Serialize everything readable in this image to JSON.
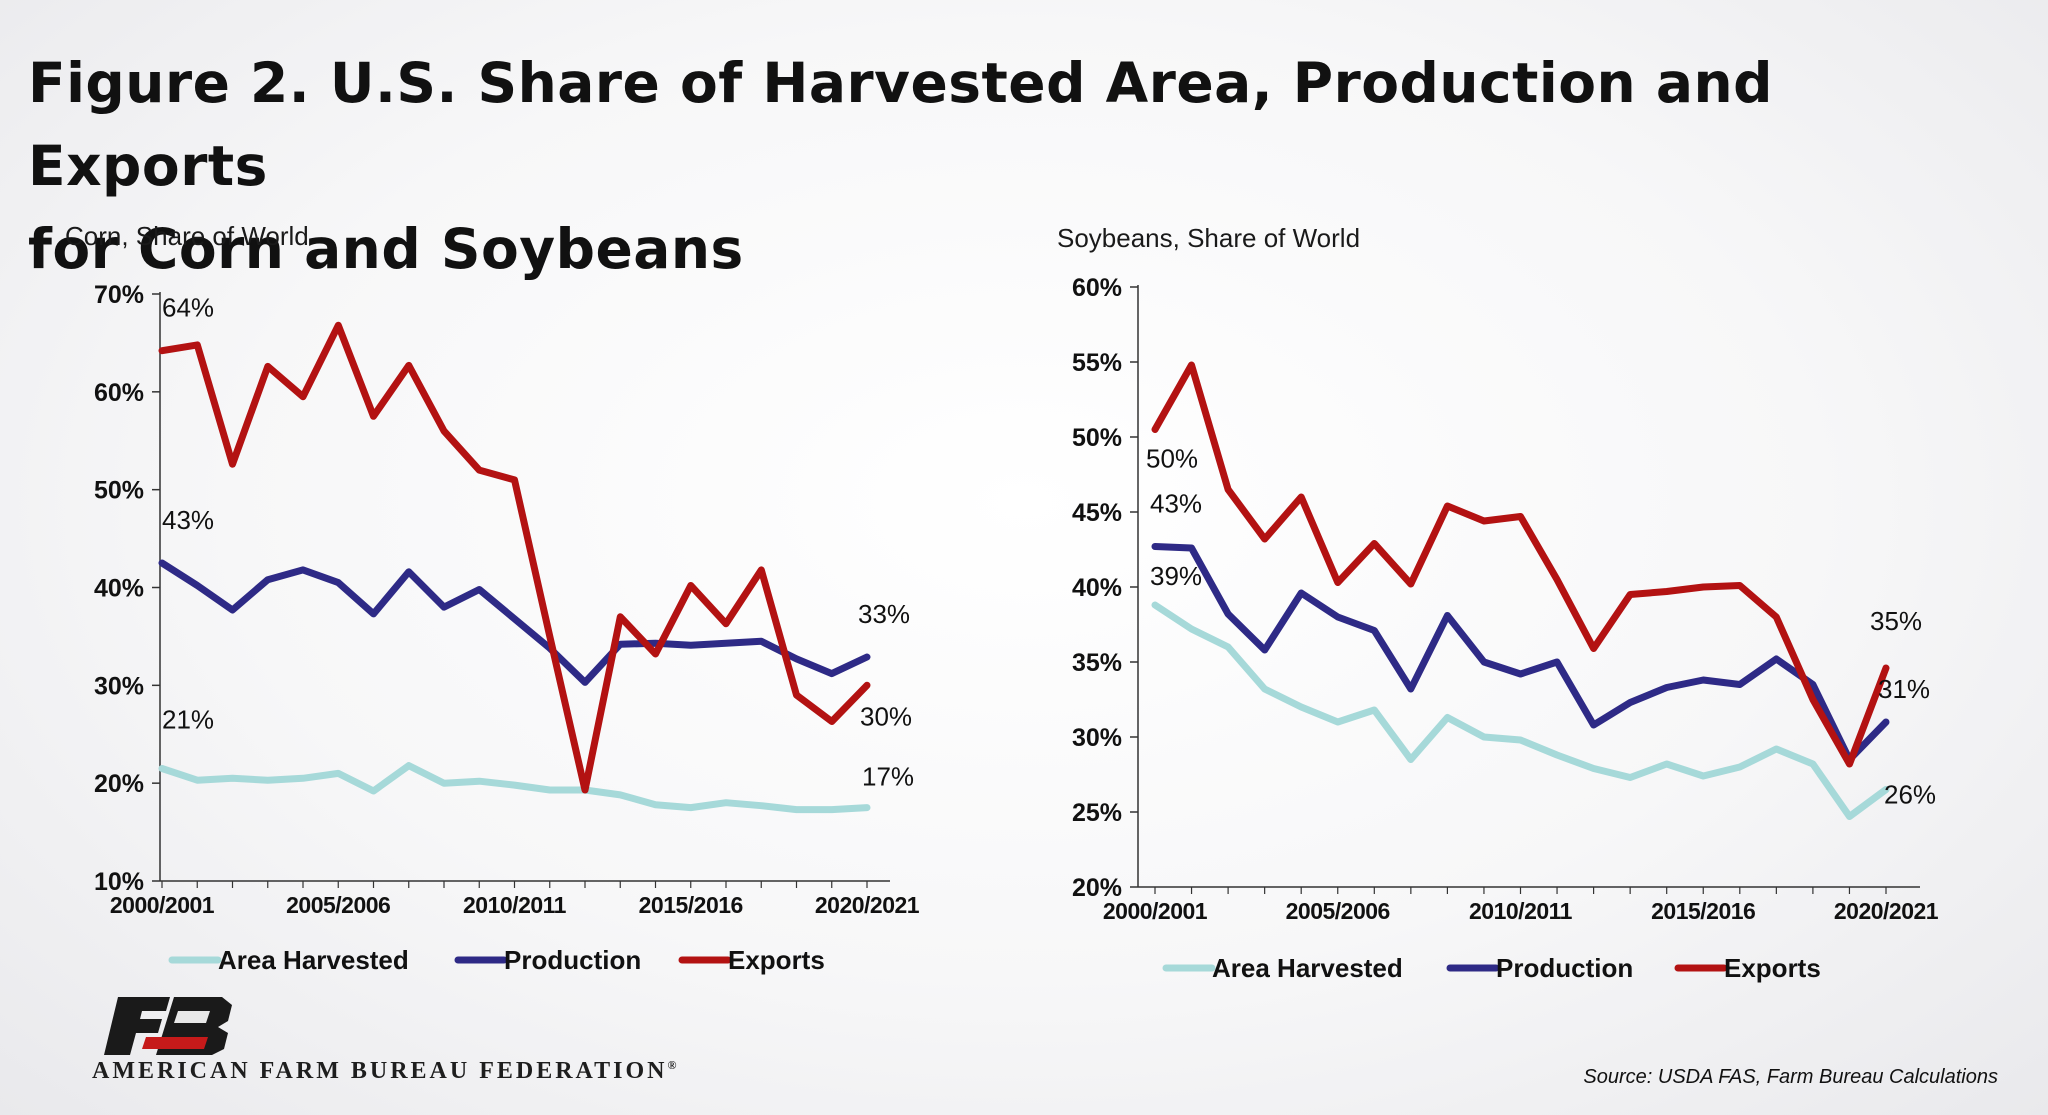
{
  "title": {
    "line1": "Figure 2. U.S. Share of Harvested Area, Production and Exports",
    "line2": "for Corn and Soybeans"
  },
  "colors": {
    "area": "#a6d9d9",
    "production": "#2e2a86",
    "exports": "#b31212",
    "axis": "#333333"
  },
  "chart_data": [
    {
      "type": "line",
      "title": "Corn, Share of World",
      "ylim": [
        10,
        70
      ],
      "yticks": [
        "10%",
        "20%",
        "30%",
        "40%",
        "50%",
        "60%",
        "70%"
      ],
      "xtick_labels": [
        "2000/2001",
        "2005/2006",
        "2010/2011",
        "2015/2016",
        "2020/2021"
      ],
      "xtick_index": [
        0,
        5,
        10,
        15,
        20
      ],
      "legend": [
        "Area Harvested",
        "Production",
        "Exports"
      ],
      "series": [
        {
          "name": "Area Harvested",
          "key": "area",
          "values": [
            21.5,
            20.3,
            20.5,
            20.3,
            20.5,
            21.0,
            19.2,
            21.8,
            20.0,
            20.2,
            19.8,
            19.3,
            19.3,
            18.8,
            17.8,
            17.5,
            18.0,
            17.7,
            17.3,
            17.3,
            17.5
          ]
        },
        {
          "name": "Production",
          "key": "production",
          "values": [
            42.5,
            40.2,
            37.7,
            40.8,
            41.8,
            40.5,
            37.3,
            41.6,
            38.0,
            39.8,
            36.8,
            33.8,
            30.3,
            34.2,
            34.3,
            34.1,
            34.3,
            34.5,
            32.7,
            31.2,
            32.9
          ]
        },
        {
          "name": "Exports",
          "key": "exports",
          "values": [
            64.2,
            64.8,
            52.6,
            62.6,
            59.5,
            66.8,
            57.5,
            62.7,
            56.0,
            52.0,
            51.0,
            35.0,
            19.3,
            37.0,
            33.2,
            40.2,
            36.3,
            41.8,
            29.0,
            26.3,
            30.0
          ]
        }
      ],
      "annotations": [
        {
          "text": "64%",
          "series": "exports",
          "index": 0
        },
        {
          "text": "43%",
          "series": "production",
          "index": 0
        },
        {
          "text": "21%",
          "series": "area",
          "index": 0
        },
        {
          "text": "33%",
          "series": "production",
          "index": 20
        },
        {
          "text": "30%",
          "series": "exports",
          "index": 20
        },
        {
          "text": "17%",
          "series": "area",
          "index": 20
        }
      ]
    },
    {
      "type": "line",
      "title": "Soybeans, Share of World",
      "ylim": [
        20,
        60
      ],
      "yticks": [
        "20%",
        "25%",
        "30%",
        "35%",
        "40%",
        "45%",
        "50%",
        "55%",
        "60%"
      ],
      "xtick_labels": [
        "2000/2001",
        "2005/2006",
        "2010/2011",
        "2015/2016",
        "2020/2021"
      ],
      "xtick_index": [
        0,
        5,
        10,
        15,
        20
      ],
      "legend": [
        "Area Harvested",
        "Production",
        "Exports"
      ],
      "series": [
        {
          "name": "Area Harvested",
          "key": "area",
          "values": [
            38.8,
            37.2,
            36.0,
            33.2,
            32.0,
            31.0,
            31.8,
            28.5,
            31.3,
            30.0,
            29.8,
            28.8,
            27.9,
            27.3,
            28.2,
            27.4,
            28.0,
            29.2,
            28.2,
            24.7,
            26.5
          ]
        },
        {
          "name": "Production",
          "key": "production",
          "values": [
            42.7,
            42.6,
            38.2,
            35.8,
            39.6,
            38.0,
            37.1,
            33.2,
            38.1,
            35.0,
            34.2,
            35.0,
            30.8,
            32.3,
            33.3,
            33.8,
            33.5,
            35.2,
            33.5,
            28.5,
            31.0
          ]
        },
        {
          "name": "Exports",
          "key": "exports",
          "values": [
            50.5,
            54.8,
            46.5,
            43.2,
            46.0,
            40.3,
            42.9,
            40.2,
            45.4,
            44.4,
            44.7,
            40.5,
            35.9,
            39.5,
            39.7,
            40.0,
            40.1,
            38.0,
            32.5,
            28.2,
            34.6
          ]
        }
      ],
      "annotations": [
        {
          "text": "50%",
          "series": "exports",
          "index": 0
        },
        {
          "text": "43%",
          "series": "production",
          "index": 0
        },
        {
          "text": "39%",
          "series": "area",
          "index": 0
        },
        {
          "text": "35%",
          "series": "exports",
          "index": 20
        },
        {
          "text": "31%",
          "series": "production",
          "index": 20
        },
        {
          "text": "26%",
          "series": "area",
          "index": 20
        }
      ]
    }
  ],
  "brand": {
    "org_name": "AMERICAN FARM BUREAU FEDERATION",
    "org_mark": "®",
    "logo_text": "FB"
  },
  "source": "Source: USDA FAS, Farm Bureau Calculations"
}
